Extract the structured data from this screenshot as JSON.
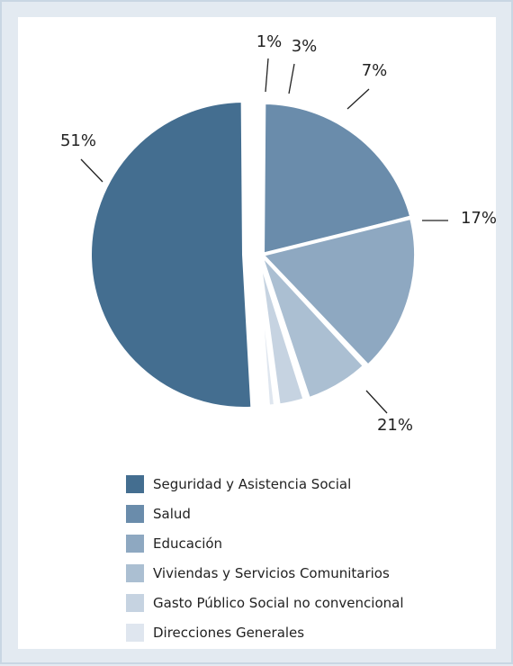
{
  "chart_data": {
    "type": "pie",
    "categories": [
      "Seguridad y Asistencia Social",
      "Salud",
      "Educación",
      "Viviendas y Servicios Comunitarios",
      "Gasto Público Social no convencional",
      "Direcciones Generales"
    ],
    "values": [
      51,
      21,
      17,
      7,
      3,
      1
    ],
    "labels": [
      "51%",
      "21%",
      "17%",
      "7%",
      "3%",
      "1%"
    ],
    "colors": [
      "#446e90",
      "#6a8cab",
      "#8ea8c1",
      "#abbfd2",
      "#c6d3e1",
      "#dfe6ef"
    ],
    "legend_position": "bottom"
  }
}
